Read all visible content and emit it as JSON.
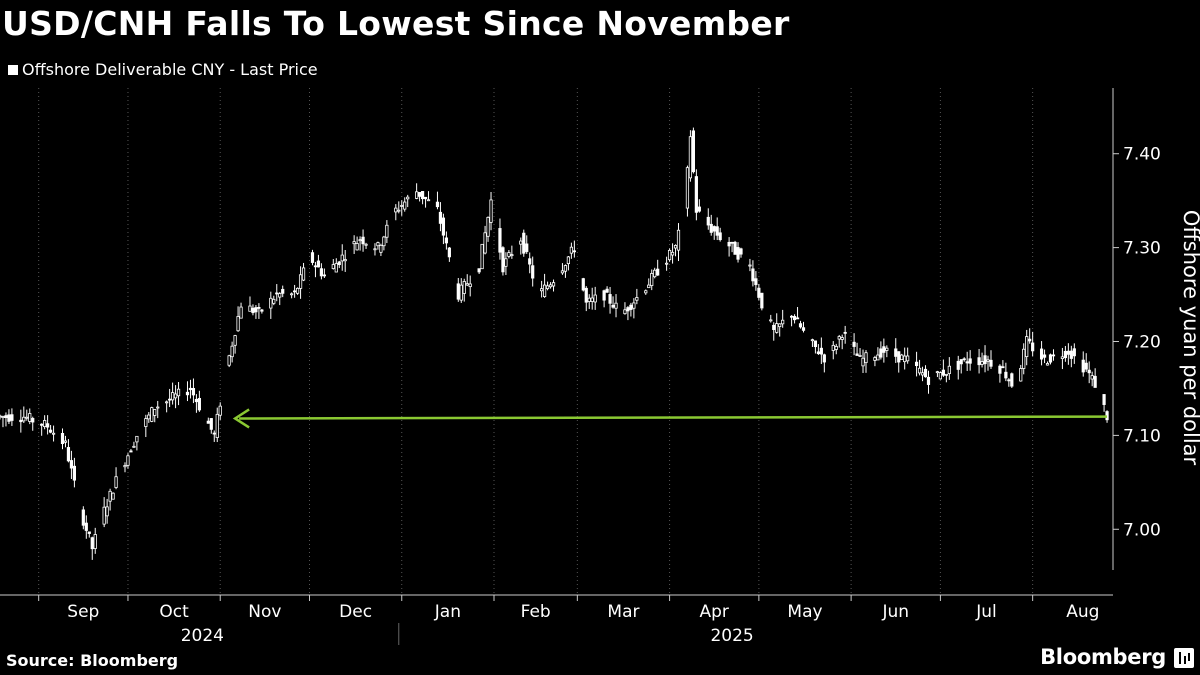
{
  "title": "USD/CNH Falls To Lowest Since November",
  "legend_label": "Offshore Deliverable CNY - Last Price",
  "source": "Source: Bloomberg",
  "brand": "Bloomberg",
  "chart_data": {
    "type": "line",
    "subtype": "candlestick",
    "ylabel": "Offshore yuan per dollar",
    "ylim": [
      6.93,
      7.47
    ],
    "yticks": [
      7.0,
      7.1,
      7.2,
      7.3,
      7.4
    ],
    "ytick_labels": [
      "7.00",
      "7.10",
      "7.20",
      "7.30",
      "7.40"
    ],
    "y_axis_position": "right",
    "xlim": [
      "2024-08-19",
      "2025-08-28"
    ],
    "month_ticks": [
      "2024-09-01",
      "2024-10-01",
      "2024-11-01",
      "2024-12-01",
      "2025-01-01",
      "2025-02-01",
      "2025-03-01",
      "2025-04-01",
      "2025-05-01",
      "2025-06-01",
      "2025-07-01",
      "2025-08-01"
    ],
    "month_labels": [
      "Sep",
      "Oct",
      "Nov",
      "Dec",
      "Jan",
      "Feb",
      "Mar",
      "Apr",
      "May",
      "Jun",
      "Jul",
      "Aug"
    ],
    "year_labels": [
      {
        "label": "2024",
        "x": "2024-10-26"
      },
      {
        "label": "2025",
        "x": "2025-04-22"
      }
    ],
    "year_divider": "2024-12-31",
    "grid": "vertical",
    "line_color": "#ffffff",
    "annotation_color": "#8ac832",
    "annotation": {
      "from": "2025-08-26",
      "to": "2024-11-06",
      "y_start": 7.12,
      "y_end": 7.118,
      "style": "arrow"
    },
    "series": [
      {
        "points": [
          [
            "2024-08-19",
            7.12
          ],
          [
            "2024-08-27",
            7.12
          ],
          [
            "2024-09-04",
            7.11
          ],
          [
            "2024-09-10",
            7.09
          ],
          [
            "2024-09-15",
            7.02
          ],
          [
            "2024-09-19",
            6.98
          ],
          [
            "2024-09-23",
            7.02
          ],
          [
            "2024-09-28",
            7.06
          ],
          [
            "2024-10-04",
            7.1
          ],
          [
            "2024-10-10",
            7.13
          ],
          [
            "2024-10-16",
            7.14
          ],
          [
            "2024-10-22",
            7.15
          ],
          [
            "2024-10-30",
            7.1
          ],
          [
            "2024-11-03",
            7.17
          ],
          [
            "2024-11-08",
            7.24
          ],
          [
            "2024-11-14",
            7.23
          ],
          [
            "2024-11-20",
            7.25
          ],
          [
            "2024-11-26",
            7.25
          ],
          [
            "2024-12-01",
            7.29
          ],
          [
            "2024-12-06",
            7.27
          ],
          [
            "2024-12-12",
            7.29
          ],
          [
            "2024-12-18",
            7.31
          ],
          [
            "2024-12-24",
            7.3
          ],
          [
            "2024-12-30",
            7.34
          ],
          [
            "2025-01-06",
            7.36
          ],
          [
            "2025-01-13",
            7.34
          ],
          [
            "2025-01-20",
            7.25
          ],
          [
            "2025-01-27",
            7.28
          ],
          [
            "2025-01-31",
            7.35
          ],
          [
            "2025-02-04",
            7.28
          ],
          [
            "2025-02-10",
            7.31
          ],
          [
            "2025-02-16",
            7.25
          ],
          [
            "2025-02-22",
            7.27
          ],
          [
            "2025-02-28",
            7.3
          ],
          [
            "2025-03-04",
            7.24
          ],
          [
            "2025-03-10",
            7.25
          ],
          [
            "2025-03-16",
            7.23
          ],
          [
            "2025-03-22",
            7.25
          ],
          [
            "2025-03-29",
            7.28
          ],
          [
            "2025-04-03",
            7.3
          ],
          [
            "2025-04-06",
            7.34
          ],
          [
            "2025-04-08",
            7.42
          ],
          [
            "2025-04-10",
            7.34
          ],
          [
            "2025-04-15",
            7.32
          ],
          [
            "2025-04-22",
            7.3
          ],
          [
            "2025-04-28",
            7.28
          ],
          [
            "2025-05-02",
            7.24
          ],
          [
            "2025-05-06",
            7.21
          ],
          [
            "2025-05-12",
            7.23
          ],
          [
            "2025-05-18",
            7.2
          ],
          [
            "2025-05-24",
            7.18
          ],
          [
            "2025-05-29",
            7.21
          ],
          [
            "2025-06-04",
            7.18
          ],
          [
            "2025-06-12",
            7.19
          ],
          [
            "2025-06-20",
            7.18
          ],
          [
            "2025-06-27",
            7.16
          ],
          [
            "2025-07-04",
            7.17
          ],
          [
            "2025-07-10",
            7.18
          ],
          [
            "2025-07-17",
            7.18
          ],
          [
            "2025-07-22",
            7.17
          ],
          [
            "2025-07-26",
            7.15
          ],
          [
            "2025-07-30",
            7.2
          ],
          [
            "2025-08-05",
            7.18
          ],
          [
            "2025-08-13",
            7.19
          ],
          [
            "2025-08-19",
            7.17
          ],
          [
            "2025-08-23",
            7.15
          ],
          [
            "2025-08-26",
            7.12
          ]
        ]
      }
    ]
  }
}
